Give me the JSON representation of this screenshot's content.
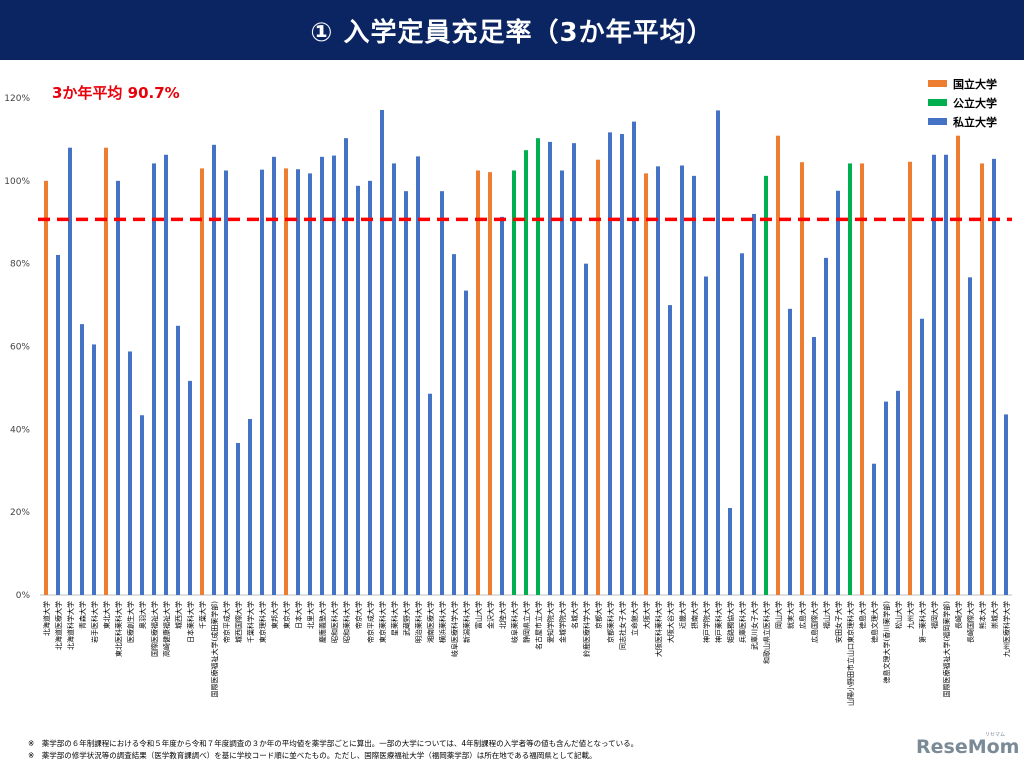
{
  "header": {
    "title": "① 入学定員充足率（3か年平均）"
  },
  "average_label": "3か年平均  90.7%",
  "legend": [
    {
      "label": "国立大学",
      "color": "#ed7d31"
    },
    {
      "label": "公立大学",
      "color": "#00b050"
    },
    {
      "label": "私立大学",
      "color": "#4472c4"
    }
  ],
  "notes": [
    "※　薬学部の６年制課程における令和５年度から令和７年度調査の３か年の平均値を薬学部ごとに算出。一部の大学については、4年制課程の入学者等の値も含んだ値となっている。",
    "※　薬学部の修学状況等の調査結果（医学教育課調べ）を基に学校コード順に並べたもの。ただし、国際医療福祉大学（福岡薬学部）は所在地である福岡県として記載。"
  ],
  "logo": {
    "text": "ReseMom",
    "sub": "リセマム"
  },
  "chart_data": {
    "type": "bar",
    "ylim": [
      0,
      120
    ],
    "yticks": [
      0,
      20,
      40,
      60,
      80,
      100,
      120
    ],
    "ytick_labels": [
      "0%",
      "20%",
      "40%",
      "60%",
      "80%",
      "100%",
      "120%"
    ],
    "reference_line": {
      "value": 90.7,
      "color": "#ff0000",
      "style": "dashed"
    },
    "grid": false,
    "legend_position": "top-right",
    "categories": [
      "北海道大学",
      "北海道医療大学",
      "北海道科学大学",
      "青森大学",
      "岩手医科大学",
      "東北大学",
      "東北医科薬科大学",
      "医療創生大学",
      "奥羽大学",
      "国際医療福祉大学",
      "高崎健康福祉大学",
      "城西大学",
      "日本薬科大学",
      "千葉大学",
      "国際医療福祉大学(成田薬学部)",
      "帝京平成大学",
      "城西国際大学",
      "千葉科学大学",
      "東京理科大学",
      "東邦大学",
      "東京大学",
      "日本大学",
      "北里大学",
      "慶應義塾大学",
      "昭和医科大学",
      "昭和薬科大学",
      "帝京大学",
      "帝京平成大学",
      "東京薬科大学",
      "星薬科大学",
      "武蔵野大学",
      "明治薬科大学",
      "湘南医療大学",
      "横浜薬科大学",
      "岐阜医療科学大学",
      "新潟薬科大学",
      "富山大学",
      "金沢大学",
      "北陸大学",
      "岐阜薬科大学",
      "静岡県立大学",
      "名古屋市立大学",
      "愛知学院大学",
      "金城学院大学",
      "名城大学",
      "鈴鹿医療科学大学",
      "京都大学",
      "京都薬科大学",
      "同志社女子大学",
      "立命館大学",
      "大阪大学",
      "大阪医科薬科大学",
      "大阪大谷大学",
      "近畿大学",
      "摂南大学",
      "神戸学院大学",
      "神戸薬科大学",
      "姫路獨協大学",
      "兵庫医科大学",
      "武庫川女子大学",
      "和歌山県立医科大学",
      "岡山大学",
      "就実大学",
      "広島大学",
      "広島国際大学",
      "福山大学",
      "安田女子大学",
      "山陽小野田市立山口東京理科大学",
      "徳島大学",
      "徳島文理大学",
      "徳島文理大学(香川薬学部)",
      "松山大学",
      "九州大学",
      "第一薬科大学",
      "福岡大学",
      "国際医療福祉大学(福岡薬学部)",
      "長崎大学",
      "長崎国際大学",
      "熊本大学",
      "崇城大学",
      "九州医療科学大学"
    ],
    "series": [
      {
        "name": "国立大学",
        "color": "#ed7d31",
        "indices": [
          0,
          5,
          13,
          20,
          36,
          37,
          46,
          50,
          61,
          63,
          68,
          72,
          76,
          78
        ]
      },
      {
        "name": "公立大学",
        "color": "#00b050",
        "indices": [
          39,
          40,
          41,
          60,
          67
        ]
      },
      {
        "name": "私立大学",
        "color": "#4472c4"
      }
    ],
    "values": [
      100,
      82.1,
      108,
      65.4,
      60.5,
      108,
      100,
      58.8,
      43.4,
      104.2,
      106.3,
      65,
      51.7,
      103,
      108.7,
      102.5,
      36.7,
      42.5,
      102.7,
      105.8,
      103,
      102.8,
      101.8,
      105.8,
      106.1,
      110.3,
      98.8,
      100,
      117.1,
      104.2,
      97.5,
      105.9,
      48.6,
      97.5,
      82.3,
      73.5,
      102.5,
      102.1,
      91.3,
      102.5,
      107.4,
      110.3,
      109.4,
      102.5,
      109.1,
      80,
      105.1,
      111.7,
      111.3,
      114.3,
      101.8,
      103.5,
      70,
      103.7,
      101.2,
      76.9,
      117,
      21,
      82.5,
      92,
      101.2,
      110.9,
      69.1,
      104.5,
      62.3,
      81.4,
      97.6,
      104.2,
      104.2,
      31.7,
      46.7,
      49.3,
      104.6,
      66.7,
      106.3,
      106.3,
      110.9,
      76.7,
      104.2,
      105.3,
      43.6
    ]
  }
}
